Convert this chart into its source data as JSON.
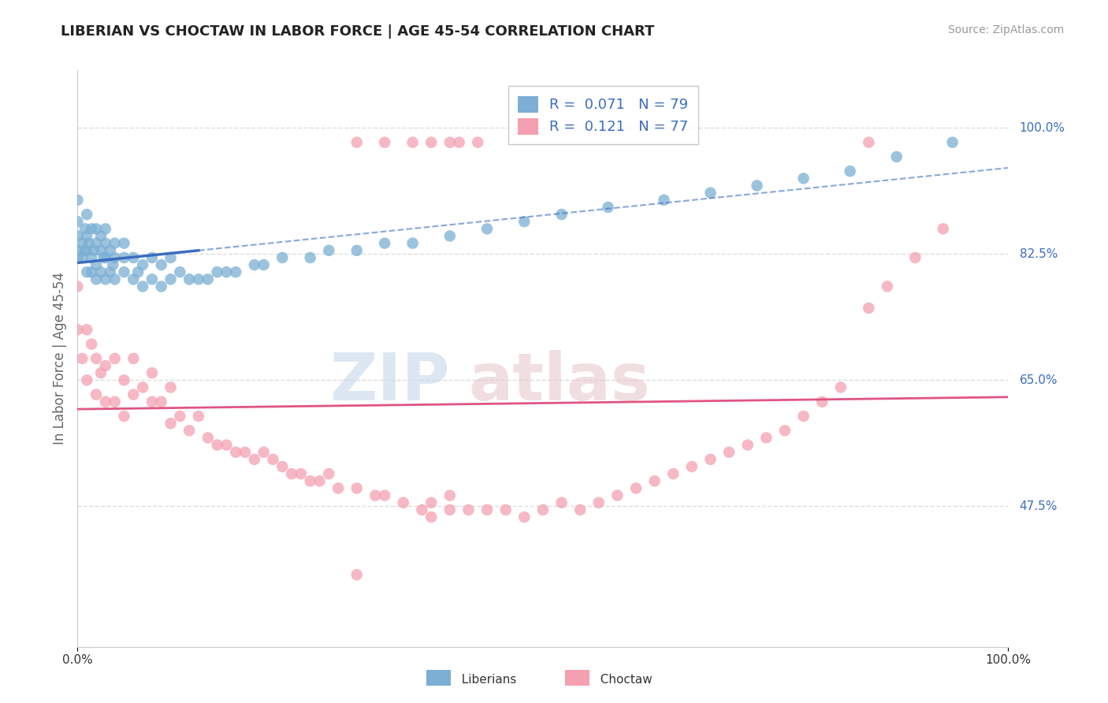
{
  "title": "LIBERIAN VS CHOCTAW IN LABOR FORCE | AGE 45-54 CORRELATION CHART",
  "source": "Source: ZipAtlas.com",
  "ylabel": "In Labor Force | Age 45-54",
  "xlim": [
    0.0,
    1.0
  ],
  "ylim": [
    0.28,
    1.08
  ],
  "liberian_R": 0.071,
  "liberian_N": 79,
  "choctaw_R": 0.121,
  "choctaw_N": 77,
  "liberian_color": "#7BAFD4",
  "choctaw_color": "#F4A0B0",
  "liberian_line_color": "#3B6DC0",
  "choctaw_line_color": "#E05580",
  "blue_label_color": "#3B6DC0",
  "grid_color": "#dddddd",
  "background_color": "#ffffff",
  "liberian_x": [
    0.0,
    0.0,
    0.0,
    0.0,
    0.0,
    0.005,
    0.005,
    0.008,
    0.008,
    0.01,
    0.01,
    0.01,
    0.01,
    0.012,
    0.015,
    0.015,
    0.015,
    0.018,
    0.02,
    0.02,
    0.02,
    0.02,
    0.025,
    0.025,
    0.025,
    0.028,
    0.03,
    0.03,
    0.03,
    0.03,
    0.035,
    0.035,
    0.038,
    0.04,
    0.04,
    0.04,
    0.05,
    0.05,
    0.05,
    0.06,
    0.06,
    0.065,
    0.07,
    0.07,
    0.08,
    0.08,
    0.09,
    0.09,
    0.1,
    0.1,
    0.11,
    0.12,
    0.13,
    0.14,
    0.15,
    0.16,
    0.17,
    0.19,
    0.2,
    0.22,
    0.25,
    0.27,
    0.3,
    0.33,
    0.36,
    0.4,
    0.44,
    0.48,
    0.52,
    0.57,
    0.63,
    0.68,
    0.73,
    0.78,
    0.83,
    0.88,
    0.94
  ],
  "liberian_y": [
    0.82,
    0.83,
    0.85,
    0.87,
    0.9,
    0.82,
    0.84,
    0.83,
    0.86,
    0.8,
    0.83,
    0.85,
    0.88,
    0.84,
    0.8,
    0.82,
    0.86,
    0.83,
    0.79,
    0.81,
    0.84,
    0.86,
    0.8,
    0.83,
    0.85,
    0.82,
    0.79,
    0.82,
    0.84,
    0.86,
    0.8,
    0.83,
    0.81,
    0.79,
    0.82,
    0.84,
    0.8,
    0.82,
    0.84,
    0.79,
    0.82,
    0.8,
    0.78,
    0.81,
    0.79,
    0.82,
    0.78,
    0.81,
    0.79,
    0.82,
    0.8,
    0.79,
    0.79,
    0.79,
    0.8,
    0.8,
    0.8,
    0.81,
    0.81,
    0.82,
    0.82,
    0.83,
    0.83,
    0.84,
    0.84,
    0.85,
    0.86,
    0.87,
    0.88,
    0.89,
    0.9,
    0.91,
    0.92,
    0.93,
    0.94,
    0.96,
    0.98
  ],
  "choctaw_x": [
    0.0,
    0.0,
    0.005,
    0.01,
    0.01,
    0.015,
    0.02,
    0.02,
    0.025,
    0.03,
    0.03,
    0.04,
    0.04,
    0.05,
    0.05,
    0.06,
    0.06,
    0.07,
    0.08,
    0.08,
    0.09,
    0.1,
    0.1,
    0.11,
    0.12,
    0.13,
    0.14,
    0.15,
    0.16,
    0.17,
    0.18,
    0.19,
    0.2,
    0.21,
    0.22,
    0.23,
    0.24,
    0.25,
    0.26,
    0.27,
    0.28,
    0.3,
    0.32,
    0.33,
    0.35,
    0.37,
    0.38,
    0.38,
    0.4,
    0.4,
    0.42,
    0.44,
    0.46,
    0.48,
    0.5,
    0.52,
    0.54,
    0.56,
    0.58,
    0.6,
    0.62,
    0.64,
    0.66,
    0.68,
    0.7,
    0.72,
    0.74,
    0.76,
    0.78,
    0.8,
    0.82,
    0.85,
    0.87,
    0.9,
    0.93
  ],
  "choctaw_y": [
    0.72,
    0.78,
    0.68,
    0.65,
    0.72,
    0.7,
    0.63,
    0.68,
    0.66,
    0.62,
    0.67,
    0.62,
    0.68,
    0.6,
    0.65,
    0.63,
    0.68,
    0.64,
    0.62,
    0.66,
    0.62,
    0.59,
    0.64,
    0.6,
    0.58,
    0.6,
    0.57,
    0.56,
    0.56,
    0.55,
    0.55,
    0.54,
    0.55,
    0.54,
    0.53,
    0.52,
    0.52,
    0.51,
    0.51,
    0.52,
    0.5,
    0.5,
    0.49,
    0.49,
    0.48,
    0.47,
    0.46,
    0.48,
    0.47,
    0.49,
    0.47,
    0.47,
    0.47,
    0.46,
    0.47,
    0.48,
    0.47,
    0.48,
    0.49,
    0.5,
    0.51,
    0.52,
    0.53,
    0.54,
    0.55,
    0.56,
    0.57,
    0.58,
    0.6,
    0.62,
    0.64,
    0.75,
    0.78,
    0.82,
    0.86
  ],
  "ytick_vals": [
    0.475,
    0.65,
    0.825,
    1.0
  ],
  "ytick_labels": [
    "47.5%",
    "65.0%",
    "82.5%",
    "100.0%"
  ],
  "xtick_vals": [
    0.0,
    1.0
  ],
  "xtick_labels": [
    "0.0%",
    "100.0%"
  ],
  "choctaw_top_x": [
    0.3,
    0.33,
    0.36,
    0.38,
    0.4,
    0.41,
    0.43,
    0.85
  ],
  "choctaw_top_y": [
    0.98,
    0.98,
    0.98,
    0.98,
    0.98,
    0.98,
    0.98,
    0.98
  ],
  "choctaw_single_low_x": [
    0.3
  ],
  "choctaw_single_low_y": [
    0.38
  ]
}
